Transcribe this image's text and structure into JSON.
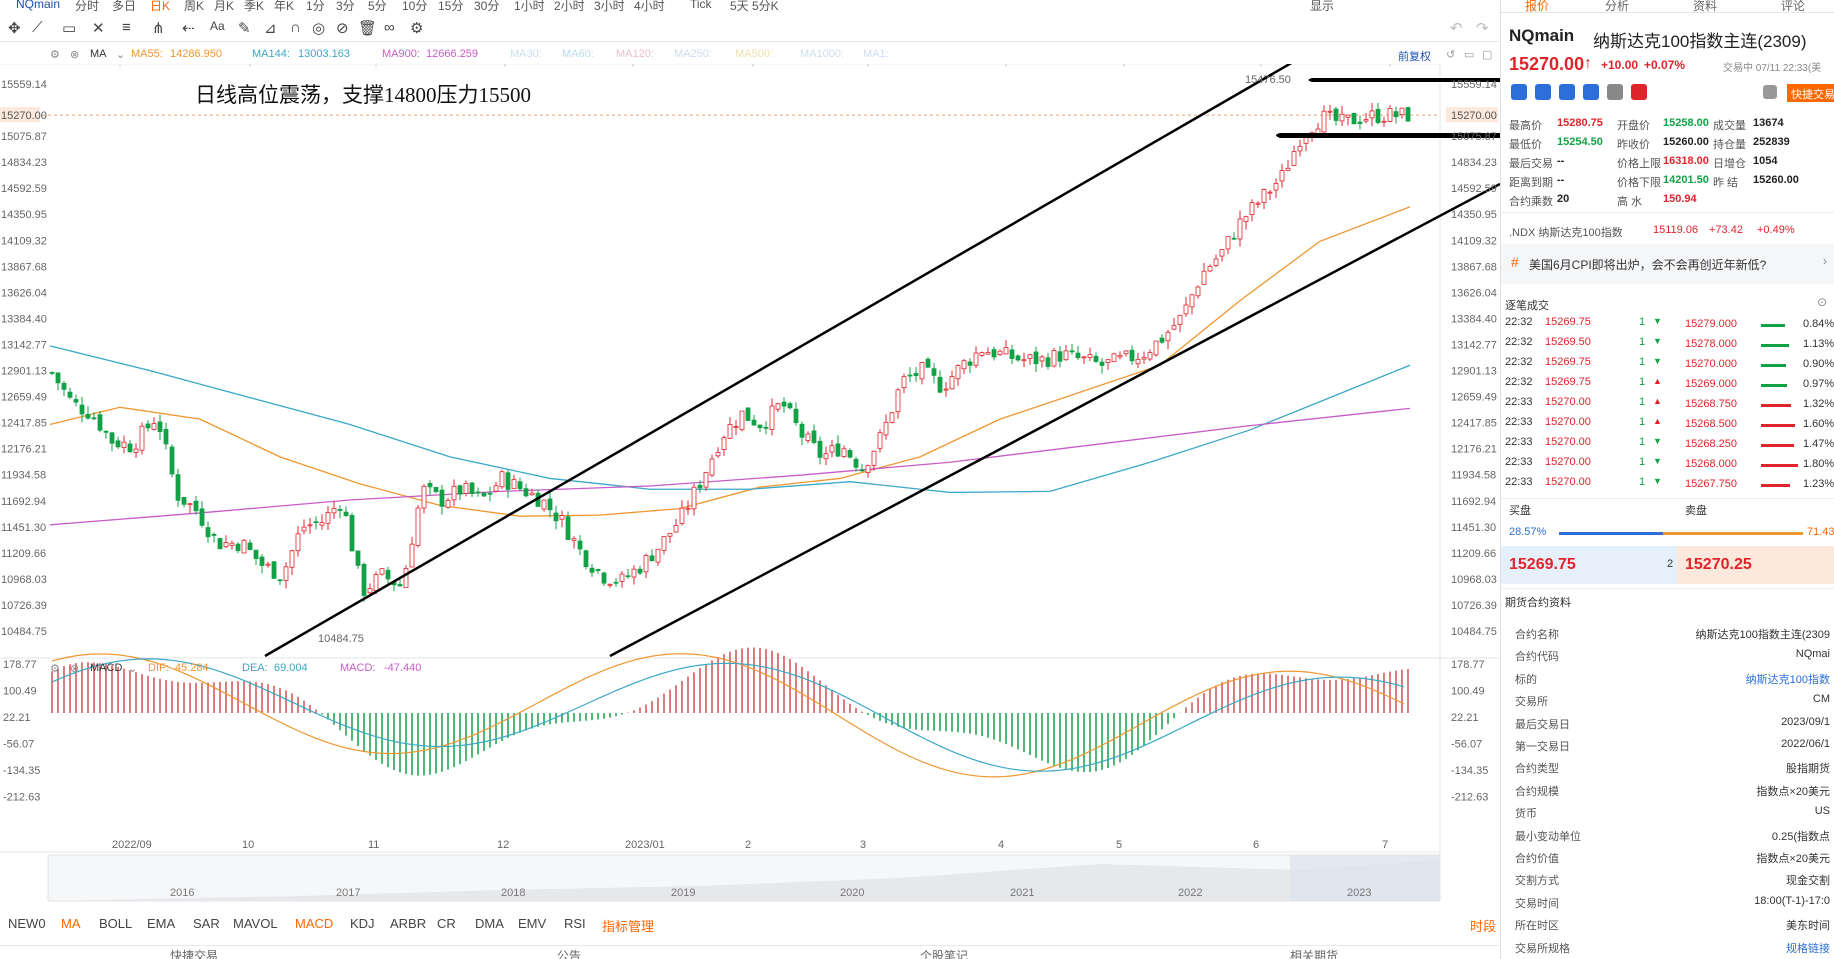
{
  "topbar": {
    "symbol": "NQmain",
    "periods": [
      "分时",
      "多日",
      "日K",
      "周K",
      "月K",
      "季K",
      "年K",
      "1分",
      "3分",
      "5分",
      "10分",
      "15分",
      "30分",
      "1小时",
      "2小时",
      "3小时",
      "4小时",
      "Tick",
      "5天 5分K"
    ],
    "right": "显示"
  },
  "indicator": {
    "type": "MA",
    "ma55_label": "MA55:",
    "ma55": "14286.950",
    "ma144_label": "MA144:",
    "ma144": "13003.163",
    "ma900_label": "MA900:",
    "ma900": "12666.259",
    "others": [
      "MA30:",
      "MA60:",
      "MA120:",
      "MA250:",
      "MA500:",
      "MA1000:",
      "MA1:"
    ],
    "adjust": "前复权"
  },
  "annotation": "日线高位震荡，支撑14800压力15500",
  "price_axis": {
    "ticks": [
      "15559.14",
      "15270.00",
      "15075.87",
      "14834.23",
      "14592.59",
      "14350.95",
      "14109.32",
      "13867.68",
      "13626.04",
      "13384.40",
      "13142.77",
      "12901.13",
      "12659.49",
      "12417.85",
      "12176.21",
      "11934.58",
      "11692.94",
      "11451.30",
      "11209.66",
      "10968.03",
      "10726.39",
      "10484.75"
    ],
    "current": "15270.00",
    "high_label": "15476.50",
    "low_label": "10484.75"
  },
  "macd": {
    "label": "MACD",
    "dif_label": "DIF:",
    "dif": "45.284",
    "dea_label": "DEA:",
    "dea": "69.004",
    "macd_label": "MACD:",
    "macd": "-47.440",
    "ticks": [
      "178.77",
      "100.49",
      "22.21",
      "-56.07",
      "-134.35",
      "-212.63"
    ]
  },
  "time_axis": [
    "2022/09",
    "10",
    "11",
    "12",
    "2023/01",
    "2",
    "3",
    "4",
    "5",
    "6",
    "7"
  ],
  "overview_years": [
    "2016",
    "2017",
    "2018",
    "2019",
    "2020",
    "2021",
    "2022",
    "2023"
  ],
  "indicator_tabs": [
    "NEW0",
    "MA",
    "BOLL",
    "EMA",
    "SAR",
    "MAVOL",
    "MACD",
    "KDJ",
    "ARBR",
    "CR",
    "DMA",
    "EMV",
    "RSI",
    "指标管理"
  ],
  "period_link": "时段",
  "bottom_tabs": [
    "快捷交易",
    "公告",
    "个股笔记",
    "相关期货"
  ],
  "colors": {
    "up": "#e0242b",
    "down": "#12a146",
    "ma55": "#f0962f",
    "ma144": "#3aa8c8",
    "ma900": "#c85cc8",
    "accent": "#ff6600"
  },
  "right": {
    "tabs": [
      "报价",
      "分析",
      "资料",
      "评论"
    ],
    "symbol": "NQmain",
    "name": "纳斯达克100指数主连(2309)",
    "price": "15270.00",
    "change": "+10.00",
    "pct": "+0.07%",
    "status": "交易中 07/11 22:33(美",
    "quick_trade": "快捷交易",
    "stats": [
      {
        "k": "最高价",
        "v": "15280.75",
        "c": "red"
      },
      {
        "k": "开盘价",
        "v": "15258.00",
        "c": "green"
      },
      {
        "k": "成交量",
        "v": "13674",
        "c": "dark"
      },
      {
        "k": "最低价",
        "v": "15254.50",
        "c": "green"
      },
      {
        "k": "昨收价",
        "v": "15260.00",
        "c": "dark"
      },
      {
        "k": "持仓量",
        "v": "252839",
        "c": "dark"
      },
      {
        "k": "最后交易",
        "v": "--",
        "c": "dark"
      },
      {
        "k": "价格上限",
        "v": "16318.00",
        "c": "red"
      },
      {
        "k": "日增仓",
        "v": "1054",
        "c": "dark"
      },
      {
        "k": "距离到期",
        "v": "--",
        "c": "dark"
      },
      {
        "k": "价格下限",
        "v": "14201.50",
        "c": "green"
      },
      {
        "k": "昨 结",
        "v": "15260.00",
        "c": "dark"
      },
      {
        "k": "合约乘数",
        "v": "20",
        "c": "dark"
      },
      {
        "k": "高 水",
        "v": "150.94",
        "c": "red"
      }
    ],
    "ndx": {
      "name": ".NDX 纳斯达克100指数",
      "price": "15119.06",
      "change": "+73.42",
      "pct": "+0.49%"
    },
    "news": "美国6月CPI即将出炉，会不会再创近年新低?",
    "ticks_title": "逐笔成交",
    "ticks": [
      {
        "t": "22:32",
        "p": "15269.75",
        "v": "1"
      },
      {
        "t": "22:32",
        "p": "15269.50",
        "v": "1"
      },
      {
        "t": "22:32",
        "p": "15269.75",
        "v": "1"
      },
      {
        "t": "22:32",
        "p": "15269.75",
        "v": "1"
      },
      {
        "t": "22:33",
        "p": "15270.00",
        "v": "1"
      },
      {
        "t": "22:33",
        "p": "15270.00",
        "v": "1"
      },
      {
        "t": "22:33",
        "p": "15270.00",
        "v": "1"
      },
      {
        "t": "22:33",
        "p": "15270.00",
        "v": "1"
      },
      {
        "t": "22:33",
        "p": "15270.00",
        "v": "1"
      }
    ],
    "depth": [
      {
        "p": "15279.000",
        "pct": "0.84%"
      },
      {
        "p": "15278.000",
        "pct": "1.13%"
      },
      {
        "p": "15270.000",
        "pct": "0.90%"
      },
      {
        "p": "15269.000",
        "pct": "0.97%"
      },
      {
        "p": "15268.750",
        "pct": "1.32%"
      },
      {
        "p": "15268.500",
        "pct": "1.60%"
      },
      {
        "p": "15268.250",
        "pct": "1.47%"
      },
      {
        "p": "15268.000",
        "pct": "1.80%"
      },
      {
        "p": "15267.750",
        "pct": "1.23%"
      }
    ],
    "buy_label": "买盘",
    "sell_label": "卖盘",
    "buy_pct": "28.57%",
    "sell_pct": "71.43",
    "bid": "15269.75",
    "ask": "15270.25",
    "spread_count": "2",
    "contract_title": "期货合约资料",
    "contract": [
      {
        "k": "合约名称",
        "v": "纳斯达克100指数主连(2309"
      },
      {
        "k": "合约代码",
        "v": "NQmai"
      },
      {
        "k": "标的",
        "v": "纳斯达克100指数"
      },
      {
        "k": "交易所",
        "v": "CM"
      },
      {
        "k": "最后交易日",
        "v": "2023/09/1"
      },
      {
        "k": "第一交易日",
        "v": "2022/06/1"
      },
      {
        "k": "合约类型",
        "v": "股指期货"
      },
      {
        "k": "合约规模",
        "v": "指数点×20美元"
      },
      {
        "k": "货币",
        "v": "US"
      },
      {
        "k": "最小变动单位",
        "v": "0.25(指数点"
      },
      {
        "k": "合约价值",
        "v": "指数点×20美元"
      },
      {
        "k": "交割方式",
        "v": "现金交割"
      },
      {
        "k": "交易时间",
        "v": "18:00(T-1)-17:0"
      },
      {
        "k": "所在时区",
        "v": "美东时间"
      },
      {
        "k": "交易所规格",
        "v": "规格链接"
      }
    ]
  }
}
